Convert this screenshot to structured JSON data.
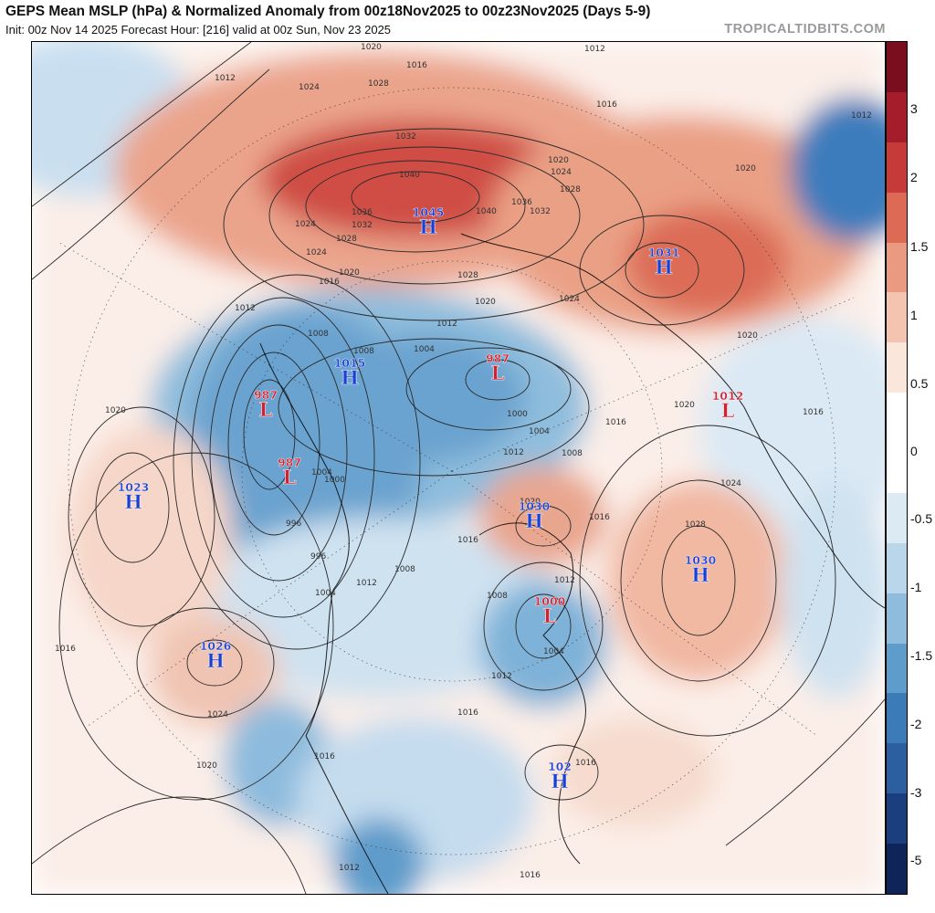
{
  "header": {
    "title": "GEPS Mean MSLP (hPa) & Normalized Anomaly from 00z18Nov2025 to 00z23Nov2025 (Days 5-9)",
    "subtitle": "Init: 00z Nov 14 2025   Forecast Hour: [216]   valid at 00z Sun, Nov 23 2025",
    "brand": "TROPICALTIDBITS.COM"
  },
  "colorbar": {
    "labels": [
      "3",
      "2",
      "1.5",
      "1",
      "0.5",
      "0",
      "-0.5",
      "-1",
      "-1.5",
      "-2",
      "-3",
      "-5"
    ],
    "colors": [
      "#7a0e1e",
      "#a51d2a",
      "#c73a3a",
      "#dc6a55",
      "#ea9a80",
      "#f4c4b0",
      "#fbe6dc",
      "#ffffff",
      "#ffffff",
      "#dceaf4",
      "#b9d6ea",
      "#8fbcdd",
      "#5e9ccb",
      "#3b7cb8",
      "#2b5fa0",
      "#1b3f7e",
      "#0f2458"
    ],
    "accent_high": "#1a3fd1",
    "accent_low": "#d41f2e"
  },
  "systems": [
    {
      "type": "H",
      "value": "1045"
    },
    {
      "type": "H",
      "value": "1031"
    },
    {
      "type": "H",
      "value": "1015"
    },
    {
      "type": "L",
      "value": "987"
    },
    {
      "type": "L",
      "value": "987"
    },
    {
      "type": "L",
      "value": "987"
    },
    {
      "type": "L",
      "value": "1012"
    },
    {
      "type": "H",
      "value": "1023"
    },
    {
      "type": "H",
      "value": "1030"
    },
    {
      "type": "H",
      "value": "1030"
    },
    {
      "type": "L",
      "value": "1000"
    },
    {
      "type": "H",
      "value": "1026"
    },
    {
      "type": "H",
      "value": "102"
    }
  ],
  "contour_labels": [
    "1020",
    "1012",
    "1016",
    "1012",
    "1024",
    "1028",
    "1032",
    "1040",
    "1020",
    "1024",
    "1028",
    "1016",
    "1020",
    "1012",
    "1024",
    "1036",
    "1032",
    "1040",
    "1036",
    "1032",
    "1028",
    "1024",
    "1020",
    "1016",
    "1028",
    "1024",
    "1012",
    "1020",
    "1012",
    "1008",
    "1008",
    "1004",
    "1000",
    "1004",
    "1008",
    "1012",
    "1016",
    "1020",
    "1016",
    "1020",
    "1024",
    "1028",
    "1020",
    "1016",
    "1004",
    "1000",
    "996",
    "996",
    "1004",
    "1012",
    "1008",
    "1016",
    "1012",
    "1008",
    "1004",
    "1012",
    "1016",
    "1016",
    "1016",
    "1020",
    "1024",
    "1020",
    "1016",
    "1012",
    "1016"
  ]
}
